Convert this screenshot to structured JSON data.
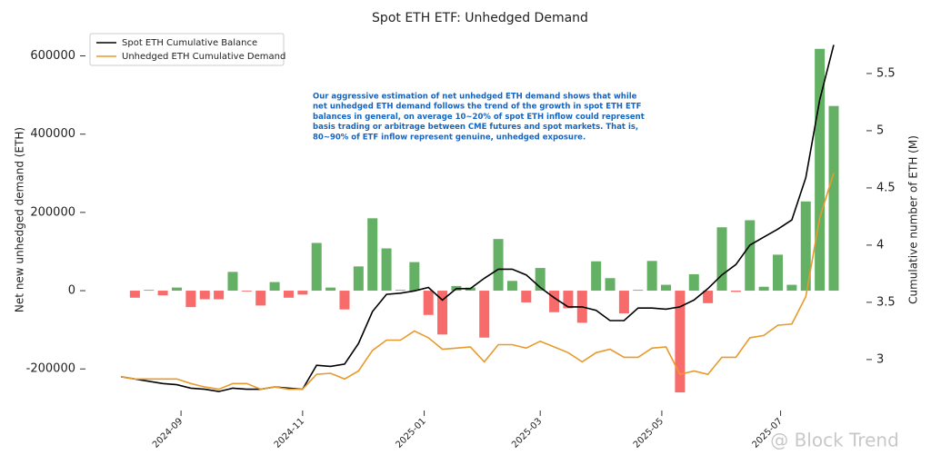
{
  "chart_data": {
    "type": "combo",
    "title": "Spot ETH ETF: Unhedged Demand",
    "ylabel": "Net new unhedged demand (ETH)",
    "y2label": "Cumulative number of ETH (M)",
    "annotation": [
      "Our aggressive estimation of net unhedged ETH demand shows that while",
      "net unhedged ETH demand follows the trend of the growth in spot ETH ETF",
      "balances in general, on average 10~20% of spot ETH inflow could represent",
      "basis trading or arbitrage between CME futures and spot markets. That is,",
      "80~90% of ETF inflow represent genuine, unhedged exposure."
    ],
    "watermark": "@ Block Trend",
    "xticks": [
      {
        "value": 4.3,
        "label": "2024-09"
      },
      {
        "value": 13.0,
        "label": "2024-11"
      },
      {
        "value": 21.7,
        "label": "2025-01"
      },
      {
        "value": 30.0,
        "label": "2025-03"
      },
      {
        "value": 38.7,
        "label": "2025-05"
      },
      {
        "value": 47.2,
        "label": "2025-07"
      }
    ],
    "xlim": [
      0,
      51
    ],
    "ylim": [
      -290000,
      650000
    ],
    "yticks": [
      -200000,
      0,
      200000,
      400000,
      600000
    ],
    "y2lim": [
      2.61,
      5.825
    ],
    "y2ticks": [
      3.0,
      3.5,
      4.0,
      4.5,
      5.0,
      5.5
    ],
    "legend": "upper left",
    "bars": {
      "positive_color": "#64b064",
      "negative_color": "#f86b6b",
      "values": [
        null,
        -18000,
        2000,
        -12000,
        8000,
        -42000,
        -22000,
        -22000,
        48000,
        -2000,
        -38000,
        22000,
        -18000,
        -10000,
        122000,
        8000,
        -48000,
        62000,
        185000,
        108000,
        2000,
        73000,
        -62000,
        -112000,
        12000,
        8000,
        -120000,
        132000,
        25000,
        -30000,
        58000,
        -55000,
        -45000,
        -82000,
        75000,
        32000,
        -58000,
        2000,
        76000,
        15000,
        -260000,
        42000,
        -32000,
        162000,
        -3000,
        180000,
        10000,
        92000,
        15000,
        228000,
        618000,
        472000
      ]
    },
    "series": [
      {
        "name": "Spot ETH Cumulative Balance",
        "color": "#000000",
        "axis": "y2",
        "values": [
          2.85,
          2.83,
          2.81,
          2.79,
          2.78,
          2.75,
          2.74,
          2.72,
          2.75,
          2.74,
          2.74,
          2.76,
          2.75,
          2.74,
          2.95,
          2.94,
          2.96,
          3.14,
          3.42,
          3.57,
          3.58,
          3.6,
          3.63,
          3.52,
          3.62,
          3.62,
          3.71,
          3.79,
          3.79,
          3.74,
          3.63,
          3.54,
          3.46,
          3.46,
          3.43,
          3.34,
          3.34,
          3.45,
          3.45,
          3.44,
          3.46,
          3.52,
          3.62,
          3.74,
          3.83,
          4.0,
          4.07,
          4.14,
          4.22,
          4.59,
          5.27,
          5.75
        ]
      },
      {
        "name": "Unhedged ETH Cumulative Demand",
        "color": "#e89a2c",
        "axis": "y2",
        "values": [
          2.85,
          2.83,
          2.83,
          2.83,
          2.83,
          2.79,
          2.76,
          2.74,
          2.79,
          2.79,
          2.74,
          2.76,
          2.74,
          2.74,
          2.87,
          2.88,
          2.83,
          2.9,
          3.08,
          3.17,
          3.17,
          3.25,
          3.19,
          3.09,
          3.1,
          3.11,
          2.98,
          3.13,
          3.13,
          3.1,
          3.16,
          3.11,
          3.06,
          2.98,
          3.06,
          3.09,
          3.02,
          3.02,
          3.1,
          3.11,
          2.87,
          2.9,
          2.87,
          3.02,
          3.02,
          3.19,
          3.21,
          3.3,
          3.31,
          3.55,
          4.24,
          4.63
        ]
      }
    ]
  }
}
